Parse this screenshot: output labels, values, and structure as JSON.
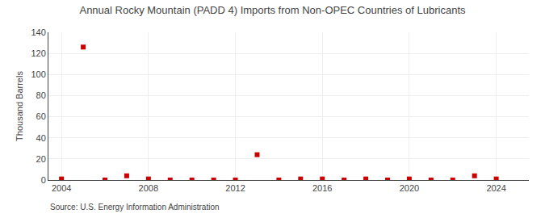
{
  "chart_data": {
    "type": "scatter",
    "title": "Annual Rocky Mountain (PADD 4) Imports from Non-OPEC Countries of Lubricants",
    "ylabel": "Thousand Barrels",
    "annotations": [
      "Source: U.S. Energy Information Administration"
    ],
    "x": [
      2004,
      2005,
      2006,
      2007,
      2008,
      2009,
      2010,
      2011,
      2012,
      2013,
      2014,
      2015,
      2016,
      2017,
      2018,
      2019,
      2020,
      2021,
      2022,
      2023,
      2024
    ],
    "values": [
      1,
      126,
      0,
      4,
      1,
      0,
      0,
      0,
      0,
      24,
      0,
      1,
      1,
      0,
      1,
      0,
      1,
      0,
      0,
      4,
      1
    ],
    "color": "#cc0000",
    "marker": "square",
    "xlim": [
      2003.4,
      2025.5
    ],
    "xticks": [
      2004,
      2008,
      2012,
      2016,
      2020,
      2024
    ],
    "ylim": [
      0,
      140
    ],
    "yticks": [
      0,
      20,
      40,
      60,
      80,
      100,
      120,
      140
    ],
    "grid": true
  }
}
